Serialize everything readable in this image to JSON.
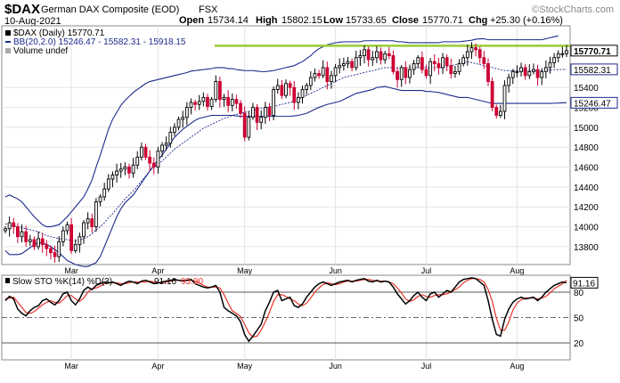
{
  "header": {
    "symbol": "$DAX",
    "name": "German DAX Composite (EOD)",
    "exchange": "FSX",
    "date": "10-Aug-2021",
    "open_label": "Open",
    "open": "15734.14",
    "high_label": "High",
    "high": "15802.15",
    "low_label": "Low",
    "low": "15733.65",
    "close_label": "Close",
    "close": "15770.71",
    "chg_label": "Chg",
    "chg": "+25.30 (+0.16%)",
    "watermark": "©StockCharts.com"
  },
  "legend": {
    "price": "$DAX (Daily) 15770.71",
    "bb": "BB(20,2.0) 15246.47 - 15582.31 - 15918.15",
    "volume": "Volume undef",
    "sto_prefix": "Slow STO %K(14) %D(3)",
    "sto_k": "91.16",
    "sto_d": "93.90"
  },
  "colors": {
    "up": "#000000",
    "down": "#cc0033",
    "bb_band": "#1c2a8c",
    "bb_mid": "#1c2a8c",
    "hline": "#99cc33",
    "k_line": "#000000",
    "d_line": "#e8352b",
    "grid": "#e4e4e4",
    "close_tag_fill": "#ffffff"
  },
  "chart_data": [
    {
      "type": "candlestick",
      "title": "$DAX (Daily) 15770.71",
      "ylim": [
        13620,
        16020
      ],
      "yticks": [
        13800,
        14000,
        14200,
        14400,
        14600,
        14800,
        15000,
        15200,
        15400
      ],
      "y_scale": "linear",
      "grid": true,
      "months": [
        {
          "label": "Mar",
          "index": 16
        },
        {
          "label": "Apr",
          "index": 37
        },
        {
          "label": "May",
          "index": 58
        },
        {
          "label": "Jun",
          "index": 80
        },
        {
          "label": "Jul",
          "index": 102
        },
        {
          "label": "Aug",
          "index": 124
        }
      ],
      "horizontal_line": 15820,
      "tags": [
        {
          "value": 15770.71,
          "label": "15770.71",
          "kind": "close"
        },
        {
          "value": 15582.31,
          "label": "15582.31",
          "kind": "bb_mid"
        },
        {
          "value": 15246.47,
          "label": "15246.47",
          "kind": "bb_lower"
        }
      ],
      "close": [
        13980,
        14040,
        14000,
        13900,
        13950,
        13850,
        13870,
        13800,
        13880,
        13820,
        13780,
        13740,
        13700,
        13850,
        13960,
        14020,
        13760,
        13820,
        13900,
        14040,
        14080,
        14000,
        14250,
        14300,
        14380,
        14480,
        14520,
        14560,
        14580,
        14600,
        14540,
        14620,
        14700,
        14800,
        14700,
        14640,
        14600,
        14760,
        14820,
        14840,
        14950,
        15000,
        15080,
        15100,
        15200,
        15250,
        15230,
        15260,
        15300,
        15210,
        15280,
        15460,
        15280,
        15300,
        15220,
        15280,
        15240,
        15140,
        14900,
        15100,
        15200,
        15050,
        15100,
        15200,
        15120,
        15380,
        15420,
        15320,
        15440,
        15400,
        15250,
        15300,
        15380,
        15420,
        15500,
        15540,
        15520,
        15600,
        15460,
        15520,
        15600,
        15620,
        15640,
        15660,
        15600,
        15700,
        15720,
        15780,
        15680,
        15700,
        15760,
        15680,
        15740,
        15720,
        15560,
        15480,
        15600,
        15500,
        15580,
        15640,
        15700,
        15580,
        15520,
        15660,
        15640,
        15600,
        15700,
        15620,
        15540,
        15560,
        15640,
        15700,
        15760,
        15800,
        15780,
        15700,
        15640,
        15460,
        15200,
        15120,
        15160,
        15420,
        15500,
        15560,
        15560,
        15600,
        15520,
        15560,
        15580,
        15500,
        15560,
        15600,
        15650,
        15700,
        15740,
        15740,
        15770
      ],
      "bb_upper": [
        14300,
        14320,
        14300,
        14280,
        14250,
        14200,
        14150,
        14100,
        14060,
        14020,
        14000,
        14000,
        14010,
        14020,
        14060,
        14100,
        14150,
        14200,
        14250,
        14300,
        14380,
        14470,
        14600,
        14720,
        14850,
        14980,
        15080,
        15150,
        15220,
        15270,
        15310,
        15350,
        15380,
        15410,
        15440,
        15460,
        15470,
        15480,
        15490,
        15500,
        15510,
        15520,
        15530,
        15540,
        15550,
        15565,
        15570,
        15575,
        15580,
        15585,
        15590,
        15600,
        15600,
        15600,
        15590,
        15590,
        15580,
        15575,
        15570,
        15570,
        15570,
        15565,
        15560,
        15560,
        15565,
        15570,
        15580,
        15590,
        15600,
        15610,
        15620,
        15640,
        15660,
        15690,
        15720,
        15760,
        15790,
        15810,
        15830,
        15840,
        15850,
        15855,
        15860,
        15860,
        15860,
        15860,
        15860,
        15870,
        15870,
        15870,
        15870,
        15870,
        15870,
        15870,
        15870,
        15860,
        15860,
        15855,
        15850,
        15850,
        15850,
        15850,
        15850,
        15850,
        15850,
        15850,
        15860,
        15860,
        15860,
        15860,
        15860,
        15865,
        15870,
        15875,
        15885,
        15890,
        15890,
        15880,
        15880,
        15880,
        15880,
        15880,
        15880,
        15880,
        15880,
        15880,
        15880,
        15880,
        15880,
        15880,
        15880,
        15890,
        15900,
        15910,
        15920
      ],
      "bb_mid": [
        14030,
        14020,
        14010,
        14000,
        13990,
        13980,
        13970,
        13960,
        13950,
        13930,
        13910,
        13900,
        13890,
        13880,
        13875,
        13870,
        13860,
        13860,
        13865,
        13880,
        13900,
        13930,
        13970,
        14000,
        14040,
        14090,
        14130,
        14180,
        14230,
        14280,
        14320,
        14360,
        14410,
        14460,
        14510,
        14560,
        14600,
        14630,
        14660,
        14700,
        14740,
        14780,
        14810,
        14840,
        14870,
        14900,
        14930,
        14960,
        14990,
        15010,
        15030,
        15050,
        15070,
        15090,
        15100,
        15120,
        15130,
        15140,
        15150,
        15160,
        15170,
        15180,
        15190,
        15200,
        15205,
        15210,
        15220,
        15230,
        15240,
        15250,
        15260,
        15280,
        15300,
        15320,
        15340,
        15360,
        15380,
        15400,
        15420,
        15440,
        15460,
        15480,
        15500,
        15510,
        15520,
        15530,
        15540,
        15550,
        15560,
        15570,
        15580,
        15590,
        15600,
        15600,
        15600,
        15600,
        15600,
        15600,
        15600,
        15600,
        15600,
        15600,
        15600,
        15600,
        15600,
        15600,
        15600,
        15610,
        15620,
        15630,
        15640,
        15650,
        15660,
        15650,
        15640,
        15630,
        15620,
        15610,
        15600,
        15590,
        15580,
        15570,
        15570,
        15570,
        15570,
        15570,
        15570,
        15570,
        15570,
        15570,
        15570,
        15570,
        15575,
        15578,
        15580,
        15581,
        15582
      ],
      "bb_lower": [
        13760,
        13720,
        13720,
        13720,
        13730,
        13760,
        13790,
        13820,
        13840,
        13840,
        13820,
        13800,
        13770,
        13740,
        13700,
        13660,
        13640,
        13620,
        13610,
        13600,
        13600,
        13620,
        13640,
        13700,
        13800,
        13900,
        14000,
        14100,
        14180,
        14240,
        14280,
        14320,
        14380,
        14440,
        14500,
        14560,
        14620,
        14670,
        14720,
        14780,
        14840,
        14900,
        14940,
        14980,
        15010,
        15040,
        15070,
        15090,
        15100,
        15110,
        15120,
        15120,
        15120,
        15120,
        15120,
        15120,
        15115,
        15110,
        15110,
        15110,
        15110,
        15110,
        15110,
        15110,
        15110,
        15110,
        15110,
        15110,
        15110,
        15110,
        15115,
        15120,
        15130,
        15140,
        15160,
        15180,
        15200,
        15215,
        15230,
        15240,
        15250,
        15260,
        15280,
        15300,
        15320,
        15340,
        15350,
        15360,
        15370,
        15380,
        15400,
        15405,
        15410,
        15400,
        15390,
        15380,
        15370,
        15370,
        15370,
        15370,
        15370,
        15370,
        15360,
        15360,
        15355,
        15350,
        15340,
        15330,
        15320,
        15310,
        15300,
        15300,
        15300,
        15290,
        15280,
        15270,
        15260,
        15250,
        15240,
        15240,
        15240,
        15240,
        15240,
        15240,
        15240,
        15240,
        15240,
        15240,
        15240,
        15240,
        15240,
        15240,
        15240,
        15242,
        15244,
        15246,
        15247
      ]
    },
    {
      "type": "line",
      "title": "Slow STO %K(14) %D(3) 91.16, 93.90",
      "ylim": [
        0,
        100
      ],
      "yticks": [
        20,
        50,
        80
      ],
      "reference_lines": [
        20,
        50,
        80
      ],
      "tags": [
        {
          "value": 91.16,
          "label": "91.16"
        }
      ],
      "series": [
        {
          "name": "%K(14)",
          "values": [
            70,
            75,
            72,
            60,
            55,
            52,
            58,
            62,
            64,
            70,
            72,
            68,
            65,
            70,
            78,
            80,
            70,
            65,
            72,
            82,
            86,
            83,
            88,
            90,
            92,
            91,
            92,
            90,
            88,
            91,
            93,
            92,
            90,
            93,
            94,
            92,
            90,
            91,
            92,
            93,
            94,
            95,
            94,
            93,
            94,
            95,
            90,
            88,
            86,
            85,
            86,
            88,
            80,
            62,
            58,
            55,
            52,
            45,
            30,
            22,
            28,
            35,
            42,
            58,
            68,
            80,
            82,
            70,
            72,
            74,
            64,
            62,
            66,
            74,
            80,
            86,
            90,
            92,
            90,
            88,
            90,
            92,
            93,
            94,
            92,
            94,
            95,
            96,
            93,
            92,
            94,
            92,
            93,
            92,
            86,
            78,
            72,
            66,
            70,
            76,
            80,
            74,
            70,
            78,
            80,
            74,
            78,
            82,
            80,
            86,
            92,
            95,
            96,
            97,
            96,
            92,
            88,
            70,
            48,
            30,
            28,
            48,
            60,
            68,
            72,
            74,
            72,
            73,
            74,
            70,
            74,
            80,
            84,
            88,
            90,
            92,
            91
          ]
        },
        {
          "name": "%D(3)",
          "values": [
            72,
            73,
            74,
            68,
            62,
            56,
            55,
            57,
            61,
            65,
            68,
            70,
            68,
            67,
            71,
            76,
            76,
            72,
            69,
            73,
            80,
            84,
            85,
            87,
            90,
            91,
            91,
            91,
            90,
            90,
            91,
            92,
            92,
            92,
            92,
            93,
            92,
            91,
            91,
            92,
            93,
            94,
            94,
            94,
            94,
            94,
            93,
            91,
            88,
            86,
            86,
            86,
            85,
            77,
            67,
            58,
            55,
            51,
            42,
            32,
            27,
            28,
            35,
            45,
            56,
            69,
            77,
            77,
            75,
            72,
            70,
            66,
            64,
            67,
            73,
            80,
            85,
            89,
            91,
            90,
            89,
            90,
            92,
            93,
            93,
            93,
            94,
            95,
            95,
            94,
            93,
            93,
            93,
            92,
            90,
            85,
            79,
            72,
            69,
            71,
            75,
            77,
            75,
            74,
            76,
            77,
            77,
            78,
            80,
            83,
            86,
            91,
            94,
            96,
            96,
            95,
            92,
            83,
            69,
            49,
            35,
            35,
            45,
            59,
            67,
            71,
            73,
            73,
            73,
            72,
            73,
            75,
            79,
            84,
            87,
            90,
            94
          ]
        }
      ],
      "months": [
        {
          "label": "Mar",
          "index": 16
        },
        {
          "label": "Apr",
          "index": 37
        },
        {
          "label": "May",
          "index": 58
        },
        {
          "label": "Jun",
          "index": 80
        },
        {
          "label": "Jul",
          "index": 102
        },
        {
          "label": "Aug",
          "index": 124
        }
      ]
    }
  ]
}
